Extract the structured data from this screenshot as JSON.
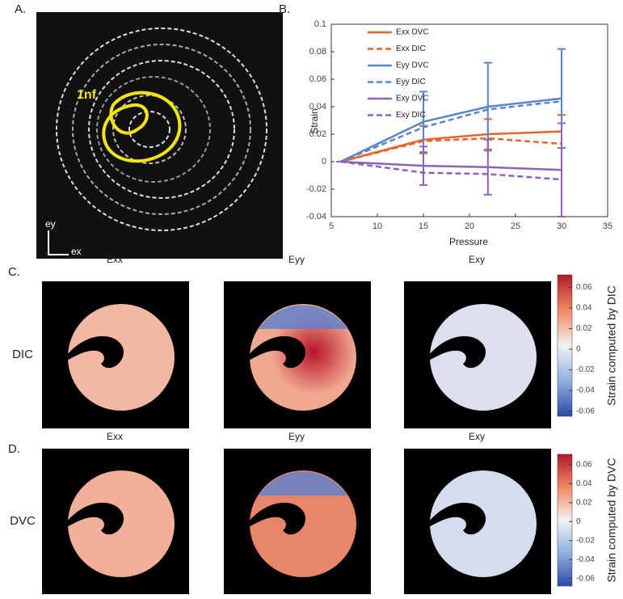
{
  "panel_a": {
    "label": "A.",
    "annotation": "1nf",
    "axis_y": "ey",
    "axis_x": "ex"
  },
  "chart_data": {
    "type": "line",
    "label": "B.",
    "x_label": "Pressure",
    "y_label": "Strain",
    "x": [
      6,
      15,
      22,
      30
    ],
    "xlim": [
      5,
      35
    ],
    "xticks": [
      5,
      10,
      15,
      20,
      25,
      30,
      35
    ],
    "ylim": [
      -0.04,
      0.1
    ],
    "yticks": [
      -0.04,
      -0.02,
      0,
      0.02,
      0.04,
      0.06,
      0.08,
      0.1
    ],
    "series": [
      {
        "name": "Exx DVC",
        "color": "#e8622a",
        "dash": false,
        "values": [
          0,
          0.016,
          0.02,
          0.022
        ],
        "errors": [
          0,
          0.01,
          0.011,
          0.012
        ]
      },
      {
        "name": "Exx DIC",
        "color": "#e8622a",
        "dash": true,
        "values": [
          0,
          0.015,
          0.017,
          0.013
        ]
      },
      {
        "name": "Eyy DVC",
        "color": "#5a86c8",
        "dash": false,
        "values": [
          0,
          0.029,
          0.04,
          0.046
        ],
        "errors": [
          0,
          0.022,
          0.032,
          0.036
        ]
      },
      {
        "name": "Eyy DIC",
        "color": "#5a86c8",
        "dash": true,
        "values": [
          0,
          0.025,
          0.038,
          0.044
        ]
      },
      {
        "name": "Exy DVC",
        "color": "#8e62b8",
        "dash": false,
        "values": [
          0,
          -0.003,
          -0.004,
          -0.006
        ],
        "errors": [
          0,
          0.014,
          0.02,
          0.034
        ]
      },
      {
        "name": "Exy DIC",
        "color": "#8e62b8",
        "dash": true,
        "values": [
          0,
          -0.008,
          -0.009,
          -0.013
        ]
      }
    ]
  },
  "rows": [
    {
      "label": "C.",
      "method": "DIC",
      "titles": [
        "Exx",
        "Eyy",
        "Exy"
      ],
      "colorbar": {
        "title": "Strain computed by DIC",
        "lim": [
          -0.065,
          0.072
        ],
        "ticks": [
          -0.06,
          -0.04,
          -0.02,
          0,
          0.02,
          0.04,
          0.06
        ]
      }
    },
    {
      "label": "D.",
      "method": "DVC",
      "titles": [
        "Exx",
        "Eyy",
        "Exy"
      ],
      "colorbar": {
        "title": "Strain computed by DVC",
        "lim": [
          -0.068,
          0.071
        ],
        "ticks": [
          -0.06,
          -0.04,
          -0.02,
          0,
          0.02,
          0.04,
          0.06
        ]
      }
    }
  ]
}
